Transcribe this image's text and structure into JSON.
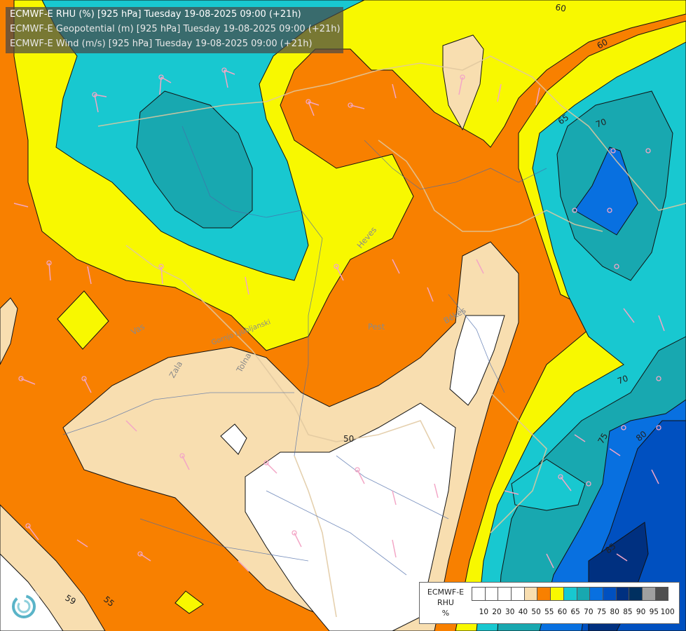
{
  "header": {
    "line1": "ECMWF-E RHU (%) [925 hPa] Tuesday 19-08-2025 09:00 (+21h)",
    "line2": "ECMWF-E Geopotential (m) [925 hPa] Tuesday 19-08-2025 09:00 (+21h)",
    "line3": "ECMWF-E Wind (m/s) [925 hPa] Tuesday 19-08-2025 09:00 (+21h)"
  },
  "legend": {
    "model": "ECMWF-E",
    "variable": "RHU",
    "unit": "%",
    "levels": [
      "10",
      "20",
      "30",
      "40",
      "50",
      "55",
      "60",
      "65",
      "70",
      "75",
      "80",
      "85",
      "90",
      "95",
      "100"
    ],
    "colors": [
      "#ffffff",
      "#ffffff",
      "#ffffff",
      "#ffffff",
      "#f8deb0",
      "#f88000",
      "#f8f800",
      "#18c8d0",
      "#18a8b0",
      "#0870e0",
      "#0050c0",
      "#003080",
      "#003060",
      "#a0a0a0",
      "#505050"
    ]
  },
  "places": {
    "heves": "Heves",
    "pest": "Pest",
    "bekes": "Békés",
    "vas": "Vas",
    "zala": "Zala",
    "tolna": "Tolna",
    "gornyu": "Gornjo Ljubljanski"
  },
  "contours": {
    "c50": "50",
    "c55": "55",
    "c59": "59",
    "c60a": "60",
    "c60b": "60",
    "c65": "65",
    "c70a": "70",
    "c70b": "70",
    "c75": "75",
    "c80": "80",
    "c85": "85"
  },
  "colors": {
    "orange": "#f88000",
    "yellow": "#f8f800",
    "tan": "#f8deb0",
    "cyan": "#18c8d0",
    "teal": "#18a8b0",
    "blue": "#0870e0",
    "dark_blue": "#0050c0",
    "navy": "#003080"
  }
}
